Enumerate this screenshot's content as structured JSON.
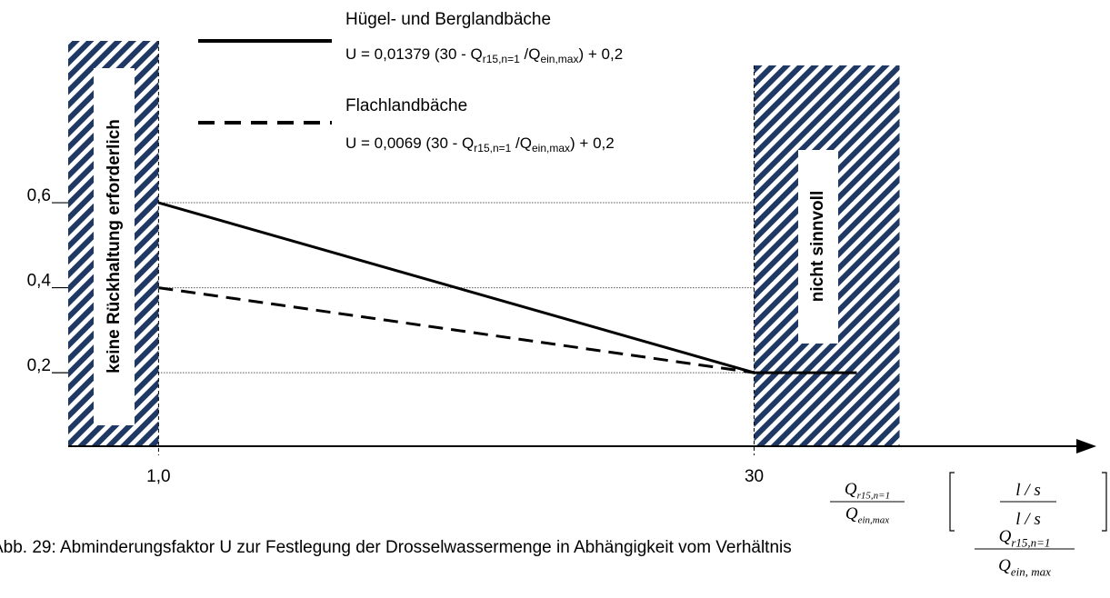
{
  "chart_data": {
    "type": "line",
    "x": [
      1,
      30,
      35
    ],
    "series": [
      {
        "name": "Hügel- und Berglandbäche",
        "formula": [
          "U = 0,01379 (30 - Q",
          "r15,n=1",
          " /Q",
          "ein,max",
          ") + 0,2"
        ],
        "color": "#000000",
        "dash": false,
        "x": [
          1,
          30,
          35
        ],
        "values": [
          0.6,
          0.2,
          0.2
        ]
      },
      {
        "name": "Flachlandbäche",
        "formula": [
          "U = 0,0069 (30 - Q",
          "r15,n=1",
          " /Q",
          "ein,max",
          ") + 0,2"
        ],
        "color": "#000000",
        "dash": true,
        "x": [
          1,
          30
        ],
        "values": [
          0.4,
          0.2
        ]
      }
    ],
    "xlim": [
      -3.4,
      46.4
    ],
    "ylim": [
      0.027,
      1.077
    ],
    "xticks": [
      {
        "value": 1,
        "label": "1,0"
      },
      30
    ],
    "yticks": [
      {
        "value": 0.2,
        "label": "0,2"
      },
      {
        "value": 0.4,
        "label": "0,4"
      },
      {
        "value": 0.6,
        "label": "0,6"
      }
    ],
    "grid": true,
    "annotations": [
      "keine Rückhaltung erforderlich",
      "nicht  sinnvoll"
    ],
    "x_label": {
      "numerator": [
        "Q",
        "r15,n=1"
      ],
      "denominator": [
        "Q",
        "ein,max"
      ],
      "unit": "l / s"
    },
    "caption": {
      "text": "Abb. 29: Abminderungsfaktor U zur Festlegung der Drosselwassermenge in Abhängigkeit vom Verhältnis",
      "numerator": [
        "Q",
        "r15,n=1"
      ],
      "denominator": [
        "Q",
        "ein, max"
      ]
    }
  }
}
